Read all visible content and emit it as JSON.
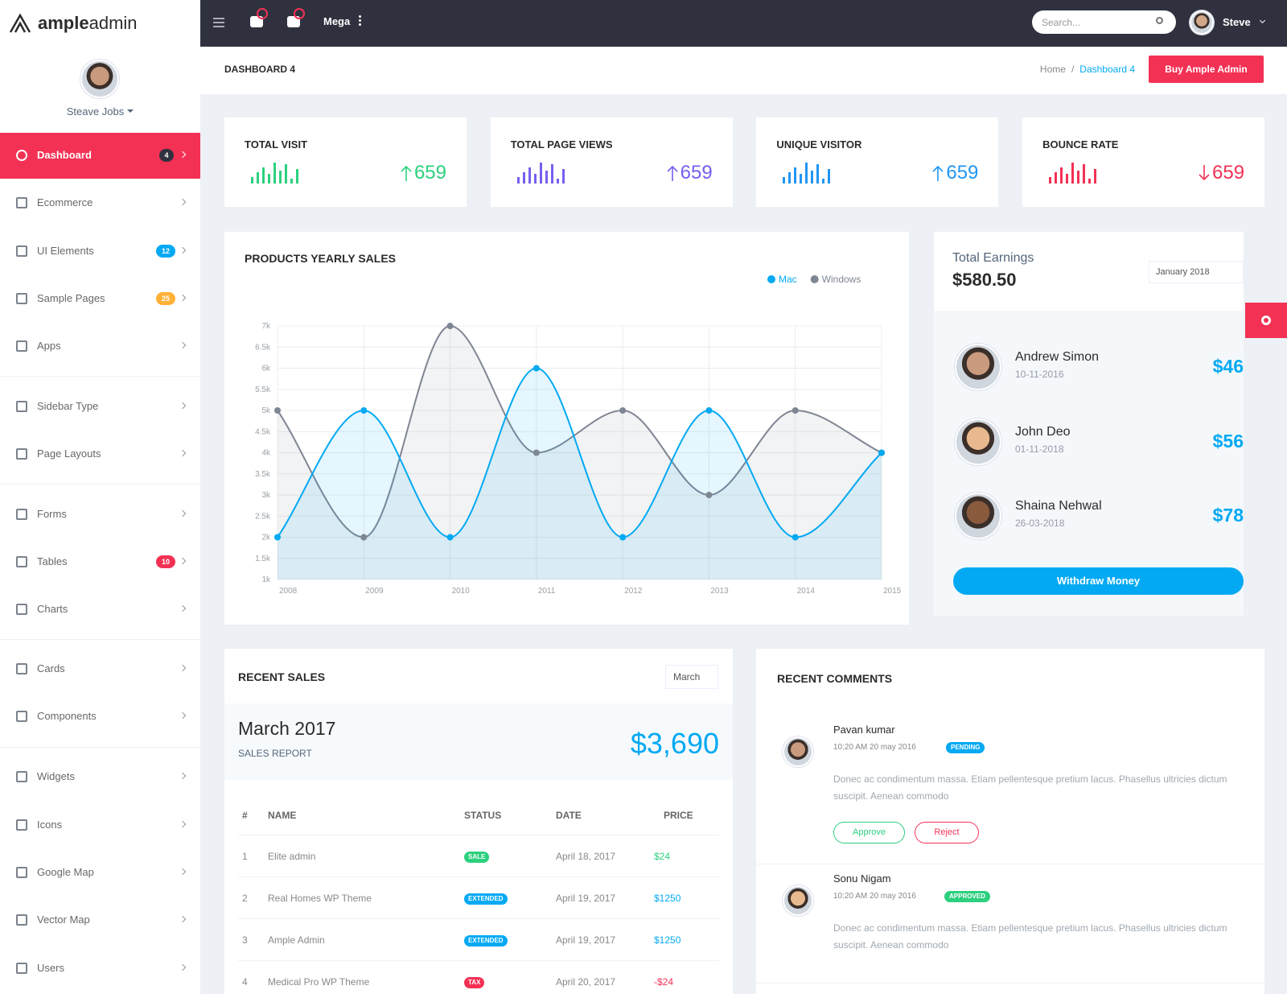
{
  "brand": {
    "bold": "ample",
    "light": "admin"
  },
  "topbar": {
    "mega": "Mega",
    "search": "Search...",
    "user": "Steve"
  },
  "sidebar": {
    "user": "Steave Jobs",
    "items": [
      {
        "label": "Dashboard",
        "badge": "4",
        "badge_color": "#2f323e"
      },
      {
        "label": "Ecommerce"
      },
      {
        "label": "UI Elements",
        "badge": "12",
        "badge_color": "#03a9f3"
      },
      {
        "label": "Sample Pages",
        "badge": "25",
        "badge_color": "#ffb136"
      },
      {
        "label": "Apps"
      },
      {
        "label": "Sidebar Type"
      },
      {
        "label": "Page Layouts"
      },
      {
        "label": "Forms"
      },
      {
        "label": "Tables",
        "badge": "10",
        "badge_color": "#f33155"
      },
      {
        "label": "Charts"
      },
      {
        "label": "Cards"
      },
      {
        "label": "Components"
      },
      {
        "label": "Widgets"
      },
      {
        "label": "Icons"
      },
      {
        "label": "Google Map"
      },
      {
        "label": "Vector Map"
      },
      {
        "label": "Users"
      }
    ]
  },
  "breadcrumb": {
    "title": "DASHBOARD 4",
    "home": "Home",
    "separator": "/",
    "current": "Dashboard 4",
    "button": "Buy Ample Admin"
  },
  "stats": [
    {
      "title": "TOTAL VISIT",
      "value": 659,
      "trend": "up",
      "color": "#2cd07e",
      "bars": [
        8,
        14,
        20,
        12,
        26,
        16,
        24,
        6,
        18
      ]
    },
    {
      "title": "TOTAL PAGE VIEWS",
      "value": 659,
      "trend": "up",
      "color": "#7460ee",
      "bars": [
        8,
        14,
        20,
        12,
        26,
        16,
        24,
        6,
        18
      ]
    },
    {
      "title": "UNIQUE VISITOR",
      "value": 659,
      "trend": "up",
      "color": "#2196f3",
      "bars": [
        8,
        14,
        20,
        12,
        26,
        16,
        24,
        6,
        18
      ]
    },
    {
      "title": "BOUNCE RATE",
      "value": 659,
      "trend": "down",
      "color": "#f33155",
      "bars": [
        8,
        14,
        20,
        12,
        26,
        16,
        24,
        6,
        18
      ]
    }
  ],
  "chart_data": {
    "type": "line",
    "title": "PRODUCTS YEARLY SALES",
    "categories": [
      "2008",
      "2009",
      "2010",
      "2011",
      "2012",
      "2013",
      "2014",
      "2015"
    ],
    "series": [
      {
        "name": "Mac",
        "color": "#03a9f3",
        "values": [
          2000,
          5000,
          2000,
          6000,
          2000,
          5000,
          2000,
          4000
        ]
      },
      {
        "name": "Windows",
        "color": "#7f8693",
        "values": [
          5000,
          2000,
          7000,
          4000,
          5000,
          3000,
          5000,
          4000
        ]
      }
    ],
    "ylim": [
      1000,
      7000
    ],
    "yticks": [
      {
        "value": 1000,
        "label": "1k"
      },
      {
        "value": 1500,
        "label": "1.5k"
      },
      {
        "value": 2000,
        "label": "2k"
      },
      {
        "value": 2500,
        "label": "2.5k"
      },
      {
        "value": 3000,
        "label": "3k"
      },
      {
        "value": 3500,
        "label": "3.5k"
      },
      {
        "value": 4000,
        "label": "4k"
      },
      {
        "value": 4500,
        "label": "4.5k"
      },
      {
        "value": 5000,
        "label": "5k"
      },
      {
        "value": 5500,
        "label": "5.5k"
      },
      {
        "value": 6000,
        "label": "6k"
      },
      {
        "value": 6500,
        "label": "6.5k"
      },
      {
        "value": 7000,
        "label": "7k"
      }
    ],
    "grid": true,
    "smooth": true
  },
  "earnings": {
    "title": "Total Earnings",
    "amount": "$580.50",
    "period": "January 2018",
    "people": [
      {
        "name": "Andrew Simon",
        "date": "10-11-2016",
        "amount": "$46"
      },
      {
        "name": "John Deo",
        "date": "01-11-2018",
        "amount": "$56"
      },
      {
        "name": "Shaina Nehwal",
        "date": "26-03-2018",
        "amount": "$78"
      }
    ],
    "button": "Withdraw Money"
  },
  "recent_sales": {
    "title": "RECENT SALES",
    "period": "March",
    "month": "March 2017",
    "report": "SALES REPORT",
    "total": "$3,690",
    "columns": [
      "#",
      "NAME",
      "STATUS",
      "DATE",
      "PRICE"
    ],
    "rows": [
      {
        "no": 1,
        "name": "Elite admin",
        "status": "SALE",
        "status_color": "#2cd07e",
        "date": "April 18, 2017",
        "price": "$24",
        "price_color": "#2cd07e"
      },
      {
        "no": 2,
        "name": "Real Homes WP Theme",
        "status": "EXTENDED",
        "status_color": "#03a9f3",
        "date": "April 19, 2017",
        "price": "$1250",
        "price_color": "#03a9f3"
      },
      {
        "no": 3,
        "name": "Ample Admin",
        "status": "EXTENDED",
        "status_color": "#03a9f3",
        "date": "April 19, 2017",
        "price": "$1250",
        "price_color": "#03a9f3"
      },
      {
        "no": 4,
        "name": "Medical Pro WP Theme",
        "status": "TAX",
        "status_color": "#f33155",
        "date": "April 20, 2017",
        "price": "-$24",
        "price_color": "#f33155"
      }
    ]
  },
  "recent_comments": {
    "title": "RECENT COMMENTS",
    "items": [
      {
        "name": "Pavan kumar",
        "time": "10:20 AM 20 may 2016",
        "status": "PENDING",
        "status_color": "#03a9f3",
        "text": "Donec ac condimentum massa. Etiam pellentesque pretium lacus. Phasellus ultricies dictum suscipit. Aenean commodo",
        "actions": [
          "Approve",
          "Reject"
        ]
      },
      {
        "name": "Sonu Nigam",
        "time": "10:20 AM 20 may 2016",
        "status": "APPROVED",
        "status_color": "#2cd07e",
        "text": "Donec ac condimentum massa. Etiam pellentesque pretium lacus. Phasellus ultricies dictum suscipit. Aenean commodo"
      }
    ]
  }
}
